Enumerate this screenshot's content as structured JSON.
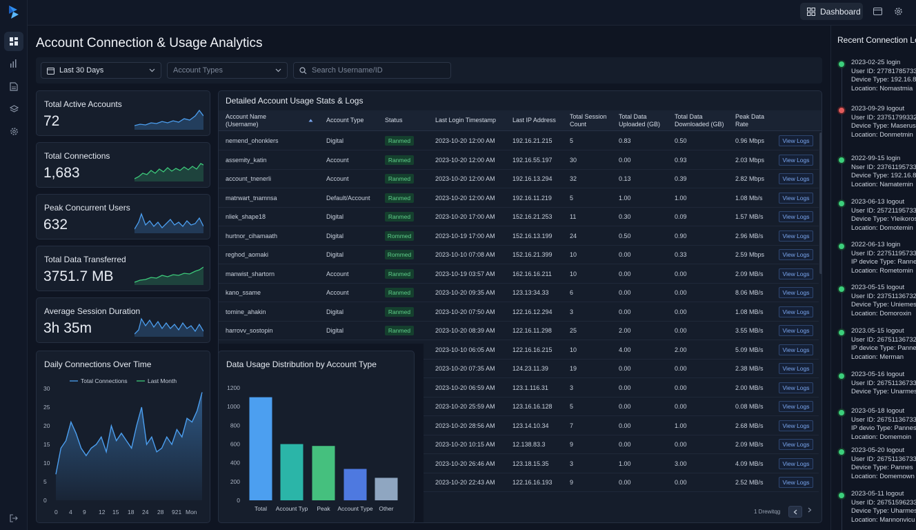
{
  "app": {
    "title": "Account Connection & Usage Analytics"
  },
  "topbar": {
    "dashboard_label": "Dashboard"
  },
  "filters": {
    "date_range": "Last 30 Days",
    "account_types_placeholder": "Account Types",
    "search_placeholder": "Search Username/ID"
  },
  "kpis": [
    {
      "label": "Total Active Accounts",
      "value": "72"
    },
    {
      "label": "Total Connections",
      "value": "1,683"
    },
    {
      "label": "Peak Concurrent Users",
      "value": "632"
    },
    {
      "label": "Total Data Transferred",
      "value": "3751.7 MB"
    },
    {
      "label": "Average Session Duration",
      "value": "3h 35m"
    }
  ],
  "table": {
    "title": "Detailed Account Usage Stats & Logs",
    "headers": {
      "name": "Account Name (Username)",
      "type": "Account Type",
      "status": "Status",
      "login": "Last Login Timestamp",
      "ip": "Last IP Address",
      "count": "Total Session Count",
      "up": "Total Data Uploaded (GB)",
      "down": "Total Data Downloaded (GB)",
      "peak": "Peak Data Rate"
    },
    "view_label": "View Logs",
    "rows": [
      {
        "name": "nemend_ohonklers",
        "type": "Digital",
        "status": "Ranmed",
        "login": "2023-10-20 12:00 AM",
        "ip": "192.16.21.215",
        "count": "5",
        "up": "0.83",
        "down": "0.50",
        "peak": "0.96 Mbps"
      },
      {
        "name": "assemity_katin",
        "type": "Account",
        "status": "Ranmed",
        "login": "2023-10-20 12:00 AM",
        "ip": "192.16.55.197",
        "count": "30",
        "up": "0.00",
        "down": "0.93",
        "peak": "2.03 Mbps"
      },
      {
        "name": "account_tnenerli",
        "type": "Account",
        "status": "Ranmed",
        "login": "2023-10-20 12:00 AM",
        "ip": "192.16.13.294",
        "count": "32",
        "up": "0.13",
        "down": "0.39",
        "peak": "2.82 Mbps"
      },
      {
        "name": "matrwart_tnamnsa",
        "type": "Default/Account",
        "status": "Ranmed",
        "login": "2023-10-20 12:00 AM",
        "ip": "192.16.11.219",
        "count": "5",
        "up": "1.00",
        "down": "1.00",
        "peak": "1.08 Mb/s"
      },
      {
        "name": "nliek_shape18",
        "type": "Digital",
        "status": "Ranmed",
        "login": "2023-10-20 17:00 AM",
        "ip": "152.16.21.253",
        "count": "11",
        "up": "0.30",
        "down": "0.09",
        "peak": "1.57 MB/s"
      },
      {
        "name": "hurtnor_cihamaath",
        "type": "Digital",
        "status": "Rommed",
        "login": "2023-10-19 17:00 AM",
        "ip": "152.16.13.199",
        "count": "24",
        "up": "0.50",
        "down": "0.90",
        "peak": "2.96 MB/s"
      },
      {
        "name": "reghod_aomaki",
        "type": "Digital",
        "status": "Rommed",
        "login": "2023-10-10 07:08 AM",
        "ip": "152.16.21.399",
        "count": "10",
        "up": "0.00",
        "down": "0.33",
        "peak": "2.59 Mbps"
      },
      {
        "name": "manwist_shartorn",
        "type": "Account",
        "status": "Ranmed",
        "login": "2023-10-19 03:57 AM",
        "ip": "162.16.16.211",
        "count": "10",
        "up": "0.00",
        "down": "0.00",
        "peak": "2.09 MB/s"
      },
      {
        "name": "kano_ssame",
        "type": "Account",
        "status": "Ranmed",
        "login": "2023-10-20 09:35 AM",
        "ip": "123.13:34.33",
        "count": "6",
        "up": "0.00",
        "down": "0.00",
        "peak": "8.06 MB/s"
      },
      {
        "name": "tomine_ahakin",
        "type": "Digital",
        "status": "Ranmed",
        "login": "2023-10-20 07:50 AM",
        "ip": "122.16.12.294",
        "count": "3",
        "up": "0.00",
        "down": "0.00",
        "peak": "1.08 MB/s"
      },
      {
        "name": "harrovv_sostopin",
        "type": "Digital",
        "status": "Ranmed",
        "login": "2023-10-20 08:39 AM",
        "ip": "122.16.11.298",
        "count": "25",
        "up": "2.00",
        "down": "0.00",
        "peak": "3.55 MB/s"
      },
      {
        "name": "",
        "type": "",
        "status": "",
        "login": "2023-10-10 06:05 AM",
        "ip": "122.16.16.215",
        "count": "10",
        "up": "4.00",
        "down": "2.00",
        "peak": "5.09 MB/s"
      },
      {
        "name": "",
        "type": "",
        "status": "",
        "login": "2023-10-20 07:35 AM",
        "ip": "124.23.11.39",
        "count": "19",
        "up": "0.00",
        "down": "0.00",
        "peak": "2.38 MB/s"
      },
      {
        "name": "",
        "type": "",
        "status": "",
        "login": "2023-10-20 06:59 AM",
        "ip": "123.1.116.31",
        "count": "3",
        "up": "0.00",
        "down": "0.00",
        "peak": "2.00 MB/s"
      },
      {
        "name": "",
        "type": "",
        "status": "",
        "login": "2023-10-20 25:59 AM",
        "ip": "123.16.16.128",
        "count": "5",
        "up": "0.00",
        "down": "0.00",
        "peak": "0.08 MB/s"
      },
      {
        "name": "",
        "type": "",
        "status": "",
        "login": "2023-10-20 28:56 AM",
        "ip": "123.14.10.34",
        "count": "7",
        "up": "0.00",
        "down": "1.00",
        "peak": "2.68 MB/s"
      },
      {
        "name": "",
        "type": "",
        "status": "",
        "login": "2023-10-20 10:15 AM",
        "ip": "12.138.83.3",
        "count": "9",
        "up": "0.00",
        "down": "0.00",
        "peak": "2.09 MB/s"
      },
      {
        "name": "",
        "type": "",
        "status": "",
        "login": "2023-10-20 26:46 AM",
        "ip": "123.18.15.35",
        "count": "3",
        "up": "1.00",
        "down": "3.00",
        "peak": "4.09 MB/s"
      },
      {
        "name": "",
        "type": "",
        "status": "",
        "login": "2023-10-20 22:43 AM",
        "ip": "122.16.16.193",
        "count": "9",
        "up": "0.00",
        "down": "0.00",
        "peak": "2.52 MB/s"
      }
    ],
    "pagination_label": "1 Drewitqg"
  },
  "connections": {
    "title": "Recent Connection Lo",
    "items": [
      {
        "status": "login",
        "color": "#3ccf7c",
        "l1": "2023-02-25 login",
        "l2": "User ID: 27781785733",
        "l3": "Device Type: 192.16.8.",
        "l4": "Location: Nomastmia"
      },
      {
        "status": "logout",
        "color": "#e25c5c",
        "l1": "2023-09-29 logout",
        "l2": "User ID: 23751799332",
        "l3": "Device Type: Maserus",
        "l4": "Location: Donmetmin"
      },
      {
        "status": "login",
        "color": "#3ccf7c",
        "l1": "2022-99-15 login",
        "l2": "Nser ID: 237611957332",
        "l3": "Device Type: 192.16.8.",
        "l4": "Location: Namatemin"
      },
      {
        "status": "logout",
        "color": "#3ccf7c",
        "l1": "2023-06-13 logout",
        "l2": "User ID: 257211957332",
        "l3": "Device Type: Yleikoros",
        "l4": "Location: Domotemin"
      },
      {
        "status": "login",
        "color": "#3ccf7c",
        "l1": "2022-06-13 login",
        "l2": "User ID: 22751195733",
        "l3": "IP device Type: Rannes",
        "l4": "Location: Rometomin"
      },
      {
        "status": "logout",
        "color": "#3ccf7c",
        "l1": "2023-05-15 logout",
        "l2": "User ID: 23751136732",
        "l3": "Device Type: Uniemes",
        "l4": "Location: Domoroxin"
      },
      {
        "status": "logout",
        "color": "#3ccf7c",
        "l1": "2023.05-15 logout",
        "l2": "User ID: 26751136732",
        "l3": "IP device Type: Pannes",
        "l4": "Location: Merman"
      },
      {
        "status": "logout",
        "color": "#3ccf7c",
        "l1": "2023-05-16 logout",
        "l2": "User ID: 26751136733",
        "l3": "Device Type: Unarmes",
        "l4": ""
      },
      {
        "status": "logout",
        "color": "#3ccf7c",
        "l1": "2023-05-18 logout",
        "l2": "User ID: 26751136733",
        "l3": "IP devio Type: Pannes",
        "l4": "Location: Domemoin"
      },
      {
        "status": "logout",
        "color": "#3ccf7c",
        "l1": "2023-05-20 logout",
        "l2": "User ID: 26751136733",
        "l3": "Device Type: Pannes",
        "l4": "Location: Domemown"
      },
      {
        "status": "logout",
        "color": "#3ccf7c",
        "l1": "2023-05-11 logout",
        "l2": "User ID: 26751596233",
        "l3": "Device Type: Uharmes",
        "l4": "Location: Mannonvicu"
      }
    ]
  },
  "chart_data": [
    {
      "type": "line",
      "title": "Daily Connections Over Time",
      "legend": [
        "Total Connections",
        "Last Month"
      ],
      "x_ticks": [
        "0",
        "4",
        "9",
        "12",
        "15",
        "18",
        "24",
        "28",
        "921",
        "Mon"
      ],
      "y_ticks": [
        "30",
        "25",
        "20",
        "15",
        "10",
        "5",
        "0"
      ],
      "ylim": [
        0,
        30
      ],
      "series": [
        {
          "name": "Total Connections",
          "values": [
            7,
            14,
            16,
            21,
            18,
            14,
            12,
            14,
            15,
            17,
            13,
            20,
            16,
            18,
            16,
            14,
            20,
            25,
            15,
            17,
            13,
            14,
            17,
            15,
            19,
            17,
            22,
            21,
            24,
            29
          ]
        }
      ]
    },
    {
      "type": "bar",
      "title": "Data Usage Distribution by Account Type",
      "categories": [
        "Total",
        "Account Typ",
        "Peak",
        "Account Type",
        "Other"
      ],
      "values": [
        1100,
        600,
        580,
        335,
        240
      ],
      "colors": [
        "#4c9ff0",
        "#2bb5a8",
        "#45c07e",
        "#4e79e0",
        "#8fa6c1"
      ],
      "y_ticks": [
        "1200",
        "1000",
        "800",
        "600",
        "400",
        "200",
        "0"
      ],
      "ylim": [
        0,
        1200
      ]
    }
  ]
}
